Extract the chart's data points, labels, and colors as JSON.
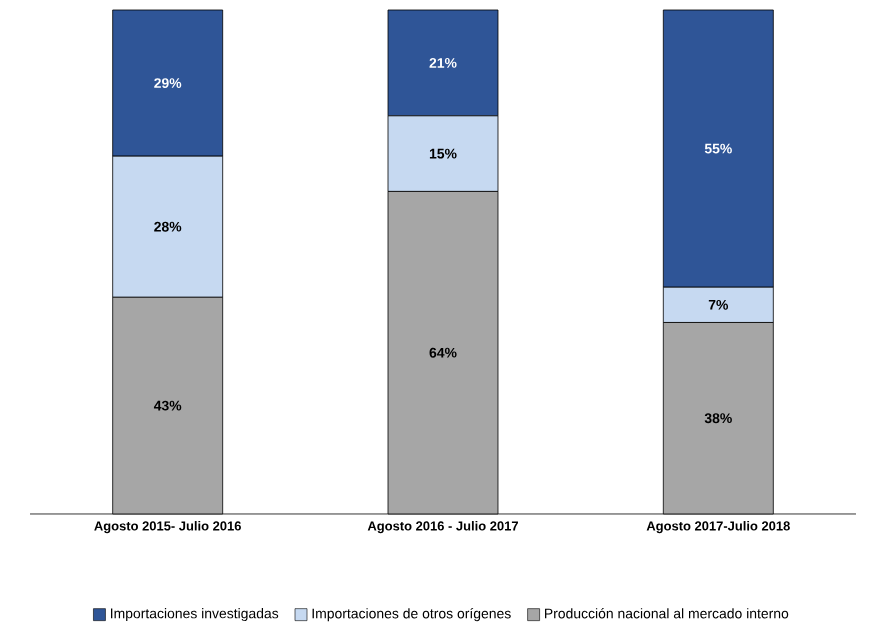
{
  "chart_data": {
    "type": "bar",
    "stacked": true,
    "legend": "bottom",
    "categories": [
      "Agosto 2015- Julio 2016",
      "Agosto 2016 - Julio 2017",
      "Agosto 2017-Julio 2018"
    ],
    "series": [
      {
        "name": "Producción nacional al mercado interno",
        "color": "#a6a6a6",
        "values": [
          43,
          64,
          38
        ],
        "value_labels": [
          "43%",
          "64%",
          "38%"
        ]
      },
      {
        "name": "Importaciones de otros orígenes",
        "color": "#c6d9f1",
        "values": [
          28,
          15,
          7
        ],
        "value_labels": [
          "28%",
          "15%",
          "7%"
        ]
      },
      {
        "name": "Importaciones investigadas",
        "color": "#2f5597",
        "values": [
          29,
          21,
          55
        ],
        "value_labels": [
          "29%",
          "21%",
          "55%"
        ]
      }
    ]
  }
}
